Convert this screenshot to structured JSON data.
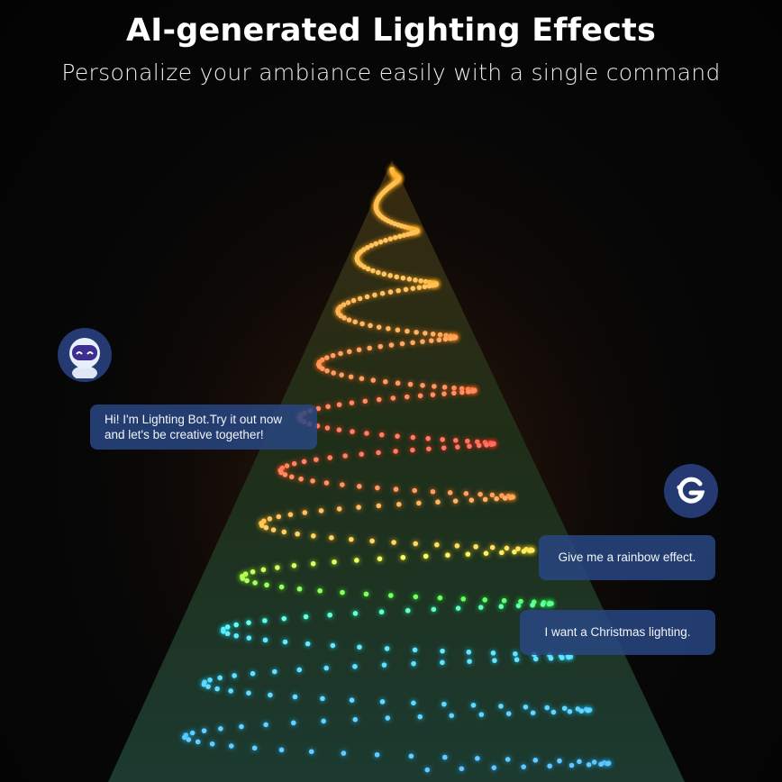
{
  "header": {
    "title": "AI-generated Lighting Effects",
    "subtitle": "Personalize your ambiance easily with a single command"
  },
  "chat": {
    "bot": {
      "avatar_icon": "robot-icon",
      "message": "Hi! I'm Lighting Bot.Try it out now and let's be creative together!"
    },
    "user": {
      "avatar_icon": "govee-logo-icon",
      "messages": [
        "Give me a rainbow effect.",
        "I want a Christmas lighting."
      ]
    }
  },
  "colors": {
    "bubble": "#284682",
    "avatar": "#253a72"
  }
}
